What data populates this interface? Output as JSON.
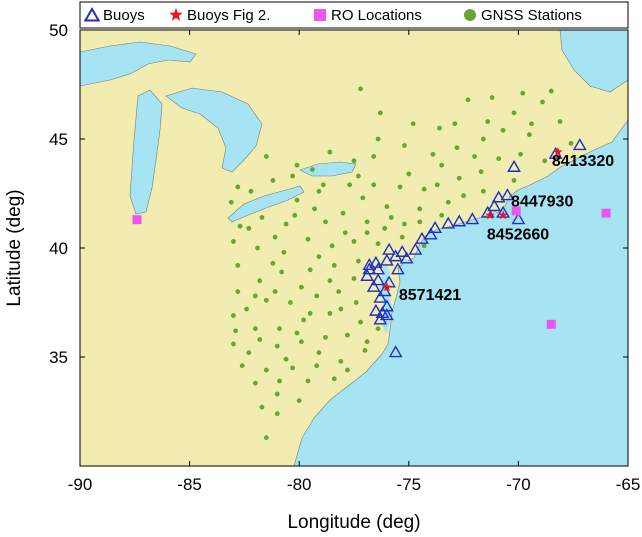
{
  "chart_data": {
    "type": "scatter",
    "title": "",
    "xlabel": "Longitude (deg)",
    "ylabel": "Latitude (deg)",
    "xlim": [
      -90,
      -65
    ],
    "ylim": [
      30,
      50
    ],
    "xticks": [
      -90,
      -85,
      -80,
      -75,
      -70,
      -65
    ],
    "yticks": [
      35,
      40,
      45,
      50
    ],
    "grid": false,
    "legend_position": "top",
    "colors": {
      "ocean": "#a7e4f3",
      "land": "#f1ecb0",
      "buoy": "#1f2fc4",
      "star": "#e8141e",
      "ro": "#ee55ee",
      "gnss": "#6aa533"
    },
    "legend": [
      {
        "label": "Buoys",
        "marker": "triangle"
      },
      {
        "label": "Buoys Fig 2.",
        "marker": "star"
      },
      {
        "label": "RO Locations",
        "marker": "square"
      },
      {
        "label": "GNSS Stations",
        "marker": "circle"
      }
    ],
    "ro_locations": [
      [
        -87.4,
        41.3
      ],
      [
        -70.1,
        41.7
      ],
      [
        -66.0,
        41.6
      ],
      [
        -68.5,
        36.5
      ]
    ],
    "buoys_fig2": [
      {
        "id": "8413320",
        "lon": -68.2,
        "lat": 44.4
      },
      {
        "id": "8447930",
        "lon": -70.7,
        "lat": 41.5
      },
      {
        "id": "8452660",
        "lon": -71.3,
        "lat": 41.5
      },
      {
        "id": "8571421",
        "lon": -76.0,
        "lat": 38.2
      }
    ],
    "buoys": [
      [
        -67.2,
        44.7
      ],
      [
        -68.3,
        44.3
      ],
      [
        -70.2,
        43.7
      ],
      [
        -70.5,
        42.4
      ],
      [
        -70.9,
        42.3
      ],
      [
        -71.1,
        41.9
      ],
      [
        -70.7,
        41.6
      ],
      [
        -70.0,
        41.3
      ],
      [
        -71.4,
        41.6
      ],
      [
        -72.1,
        41.3
      ],
      [
        -72.7,
        41.2
      ],
      [
        -73.2,
        41.1
      ],
      [
        -73.8,
        40.9
      ],
      [
        -74.0,
        40.6
      ],
      [
        -74.4,
        40.4
      ],
      [
        -74.7,
        39.9
      ],
      [
        -75.1,
        39.5
      ],
      [
        -75.5,
        39.0
      ],
      [
        -75.6,
        39.6
      ],
      [
        -76.0,
        39.4
      ],
      [
        -76.5,
        39.3
      ],
      [
        -76.8,
        39.0
      ],
      [
        -76.9,
        38.7
      ],
      [
        -76.4,
        38.5
      ],
      [
        -76.1,
        38.0
      ],
      [
        -75.9,
        38.4
      ],
      [
        -76.6,
        38.2
      ],
      [
        -76.3,
        37.7
      ],
      [
        -76.0,
        37.3
      ],
      [
        -76.2,
        37.0
      ],
      [
        -76.5,
        37.1
      ],
      [
        -76.0,
        36.9
      ],
      [
        -76.3,
        36.7
      ],
      [
        -75.6,
        35.2
      ],
      [
        -75.9,
        39.9
      ],
      [
        -75.3,
        39.8
      ],
      [
        -76.8,
        39.2
      ],
      [
        -76.4,
        39.0
      ]
    ],
    "gnss_stations": [
      [
        -77.2,
        47.3
      ],
      [
        -76.3,
        46.2
      ],
      [
        -74.8,
        45.7
      ],
      [
        -73.6,
        45.5
      ],
      [
        -72.3,
        46.8
      ],
      [
        -71.2,
        46.9
      ],
      [
        -70.7,
        45.4
      ],
      [
        -69.8,
        47.1
      ],
      [
        -68.5,
        47.2
      ],
      [
        -68.9,
        46.7
      ],
      [
        -68.1,
        45.8
      ],
      [
        -69.5,
        45.2
      ],
      [
        -71.6,
        45.0
      ],
      [
        -72.8,
        44.6
      ],
      [
        -73.9,
        44.3
      ],
      [
        -75.2,
        44.7
      ],
      [
        -76.6,
        44.2
      ],
      [
        -77.5,
        44.0
      ],
      [
        -78.6,
        44.4
      ],
      [
        -79.4,
        43.6
      ],
      [
        -80.3,
        43.3
      ],
      [
        -81.2,
        43.1
      ],
      [
        -82.2,
        42.6
      ],
      [
        -83.1,
        42.1
      ],
      [
        -82.8,
        42.8
      ],
      [
        -80.1,
        42.2
      ],
      [
        -79.1,
        42.6
      ],
      [
        -77.7,
        42.9
      ],
      [
        -76.6,
        42.9
      ],
      [
        -75.4,
        42.8
      ],
      [
        -74.3,
        42.7
      ],
      [
        -73.7,
        42.9
      ],
      [
        -72.7,
        43.2
      ],
      [
        -71.7,
        43.5
      ],
      [
        -70.9,
        44.1
      ],
      [
        -69.9,
        44.3
      ],
      [
        -72.5,
        42.4
      ],
      [
        -71.6,
        42.6
      ],
      [
        -73.2,
        42.1
      ],
      [
        -74.5,
        41.8
      ],
      [
        -75.8,
        41.4
      ],
      [
        -76.9,
        41.2
      ],
      [
        -78.0,
        41.6
      ],
      [
        -79.3,
        41.8
      ],
      [
        -80.6,
        41.1
      ],
      [
        -81.7,
        41.4
      ],
      [
        -82.7,
        41.0
      ],
      [
        -83.0,
        40.3
      ],
      [
        -81.9,
        40.0
      ],
      [
        -80.7,
        39.8
      ],
      [
        -79.6,
        40.4
      ],
      [
        -78.5,
        40.1
      ],
      [
        -77.5,
        40.3
      ],
      [
        -76.4,
        40.2
      ],
      [
        -75.3,
        40.5
      ],
      [
        -74.5,
        41.2
      ],
      [
        -73.5,
        41.5
      ],
      [
        -77.3,
        39.4
      ],
      [
        -78.4,
        39.2
      ],
      [
        -79.5,
        39.0
      ],
      [
        -80.8,
        38.9
      ],
      [
        -81.8,
        38.5
      ],
      [
        -82.8,
        38.0
      ],
      [
        -81.5,
        37.6
      ],
      [
        -80.4,
        37.5
      ],
      [
        -79.2,
        37.8
      ],
      [
        -78.2,
        38.0
      ],
      [
        -77.4,
        37.5
      ],
      [
        -78.6,
        37.0
      ],
      [
        -79.8,
        36.7
      ],
      [
        -80.9,
        36.3
      ],
      [
        -82.0,
        36.3
      ],
      [
        -83.0,
        35.6
      ],
      [
        -82.3,
        35.2
      ],
      [
        -81.0,
        35.5
      ],
      [
        -79.9,
        35.7
      ],
      [
        -78.8,
        35.9
      ],
      [
        -77.8,
        36.0
      ],
      [
        -77.0,
        35.3
      ],
      [
        -78.1,
        34.8
      ],
      [
        -79.2,
        34.6
      ],
      [
        -80.3,
        34.5
      ],
      [
        -81.5,
        34.4
      ],
      [
        -82.6,
        34.6
      ],
      [
        -80.9,
        33.9
      ],
      [
        -79.6,
        33.9
      ],
      [
        -78.4,
        34.0
      ],
      [
        -80.0,
        33.0
      ],
      [
        -81.0,
        32.4
      ],
      [
        -81.5,
        31.3
      ],
      [
        -79.5,
        37.0
      ],
      [
        -80.1,
        36.1
      ],
      [
        -82.4,
        37.2
      ],
      [
        -82.8,
        39.2
      ],
      [
        -81.2,
        39.3
      ],
      [
        -79.1,
        39.6
      ],
      [
        -76.0,
        41.9
      ],
      [
        -77.1,
        42.3
      ],
      [
        -78.9,
        42.9
      ],
      [
        -75.0,
        43.4
      ],
      [
        -73.5,
        43.8
      ],
      [
        -72.0,
        44.2
      ],
      [
        -70.2,
        43.1
      ],
      [
        -76.4,
        45.0
      ],
      [
        -72.9,
        45.7
      ],
      [
        -71.4,
        45.8
      ],
      [
        -70.2,
        46.2
      ],
      [
        -67.6,
        44.8
      ],
      [
        -68.8,
        44.0
      ],
      [
        -69.4,
        45.7
      ],
      [
        -82.3,
        40.9
      ],
      [
        -81.1,
        40.5
      ],
      [
        -80.2,
        41.5
      ],
      [
        -78.8,
        41.2
      ],
      [
        -77.9,
        40.7
      ],
      [
        -76.9,
        40.7
      ],
      [
        -76.1,
        40.9
      ],
      [
        -75.2,
        41.1
      ],
      [
        -74.3,
        40.1
      ],
      [
        -77.5,
        38.6
      ],
      [
        -78.6,
        38.5
      ],
      [
        -79.9,
        38.2
      ],
      [
        -81.1,
        38.0
      ],
      [
        -82.0,
        37.8
      ],
      [
        -83.0,
        36.9
      ],
      [
        -78.1,
        37.2
      ],
      [
        -77.2,
        36.6
      ],
      [
        -76.4,
        36.3
      ],
      [
        -76.9,
        35.7
      ],
      [
        -81.8,
        35.8
      ],
      [
        -82.9,
        36.2
      ],
      [
        -80.6,
        34.9
      ],
      [
        -79.1,
        35.2
      ],
      [
        -77.8,
        34.4
      ],
      [
        -81.0,
        33.3
      ],
      [
        -82.0,
        33.8
      ],
      [
        -81.7,
        32.7
      ],
      [
        -77.3,
        43.3
      ],
      [
        -80.1,
        43.8
      ],
      [
        -81.5,
        44.2
      ]
    ]
  },
  "map": {
    "ocean_color": "#a7e4f3",
    "land_color": "#f1ecb0"
  }
}
